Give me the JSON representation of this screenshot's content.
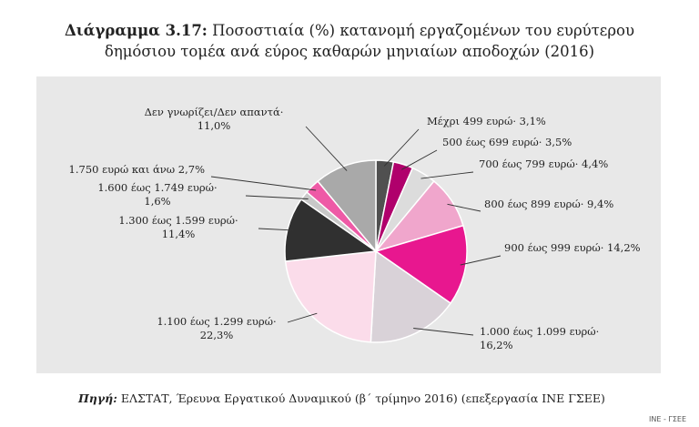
{
  "header": {
    "title_bold": "Διάγραμμα 3.17:",
    "title_line1": "Ποσοστιαία (%) κατανομή εργαζομένων του ευρύτερου",
    "title_line2": "δημόσιου τομέα ανά εύρος καθαρών μηνιαίων αποδοχών (2016)"
  },
  "footer": {
    "source_label": "Πηγή:",
    "source_text": "ΕΛΣΤΑΤ, Έρευνα Εργατικού Δυναμικού (β΄ τρίμηνο 2016) (επεξεργασία ΙΝΕ ΓΣΕΕ)",
    "corner_tag": "ΙΝΕ - ΓΣΕΕ"
  },
  "chart_data": {
    "type": "pie",
    "title": "Ποσοστιαία (%) κατανομή εργαζομένων του ευρύτερου δημόσιου τομέα ανά εύρος καθαρών μηνιαίων αποδοχών (2016)",
    "start_angle_deg": 0,
    "direction": "clockwise",
    "slices": [
      {
        "label": "Μέχρι 499 ευρώ·",
        "value": 3.1,
        "value_label": "3,1%",
        "color": "#505050"
      },
      {
        "label": "500 έως 699 ευρώ·",
        "value": 3.5,
        "value_label": "3,5%",
        "color": "#b0006c"
      },
      {
        "label": "700 έως 799 ευρώ·",
        "value": 4.4,
        "value_label": "4,4%",
        "color": "#dcdcdc"
      },
      {
        "label": "800 έως 899 ευρώ·",
        "value": 9.4,
        "value_label": "9,4%",
        "color": "#f0a6cc"
      },
      {
        "label": "900 έως 999 ευρώ·",
        "value": 14.2,
        "value_label": "14,2%",
        "color": "#e8178f"
      },
      {
        "label": "1.000 έως 1.099 ευρώ·",
        "value": 16.2,
        "value_label": "16,2%",
        "color": "#d9d2d8"
      },
      {
        "label": "1.100 έως 1.299 ευρώ·",
        "value": 22.3,
        "value_label": "22,3%",
        "color": "#fbdcea"
      },
      {
        "label": "1.300 έως 1.599 ευρώ·",
        "value": 11.4,
        "value_label": "11,4%",
        "color": "#303030"
      },
      {
        "label": "1.600 έως 1.749 ευρώ·",
        "value": 1.6,
        "value_label": "1,6%",
        "color": "#c8c8c8"
      },
      {
        "label": "1.750 ευρώ και άνω",
        "value": 2.7,
        "value_label": "2,7%",
        "color": "#ee5aa6"
      },
      {
        "label": "Δεν γνωρίζει/Δεν απαντά·",
        "value": 11.0,
        "value_label": "11,0%",
        "color": "#a9a9a9"
      }
    ]
  }
}
